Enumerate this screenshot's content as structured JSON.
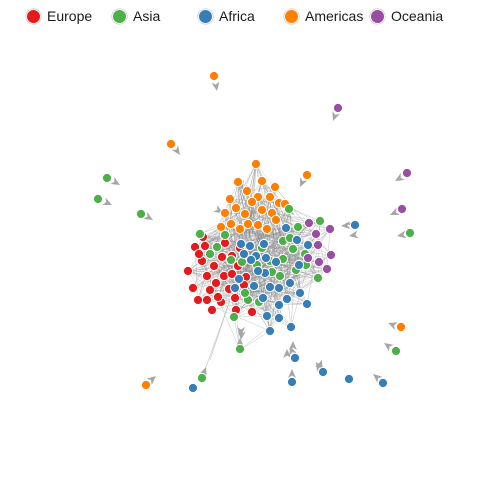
{
  "legend": {
    "items": [
      {
        "label": "Europe",
        "color": "#e41a1c"
      },
      {
        "label": "Asia",
        "color": "#4daf4a"
      },
      {
        "label": "Africa",
        "color": "#377eb8"
      },
      {
        "label": "Americas",
        "color": "#ff7f00"
      },
      {
        "label": "Oceania",
        "color": "#984ea3"
      }
    ]
  },
  "colors": {
    "Europe": "#e41a1c",
    "Asia": "#4daf4a",
    "Africa": "#377eb8",
    "Americas": "#ff7f00",
    "Oceania": "#984ea3",
    "edge": "#8a8a8a",
    "arrow": "#a6a6a6"
  }
}
